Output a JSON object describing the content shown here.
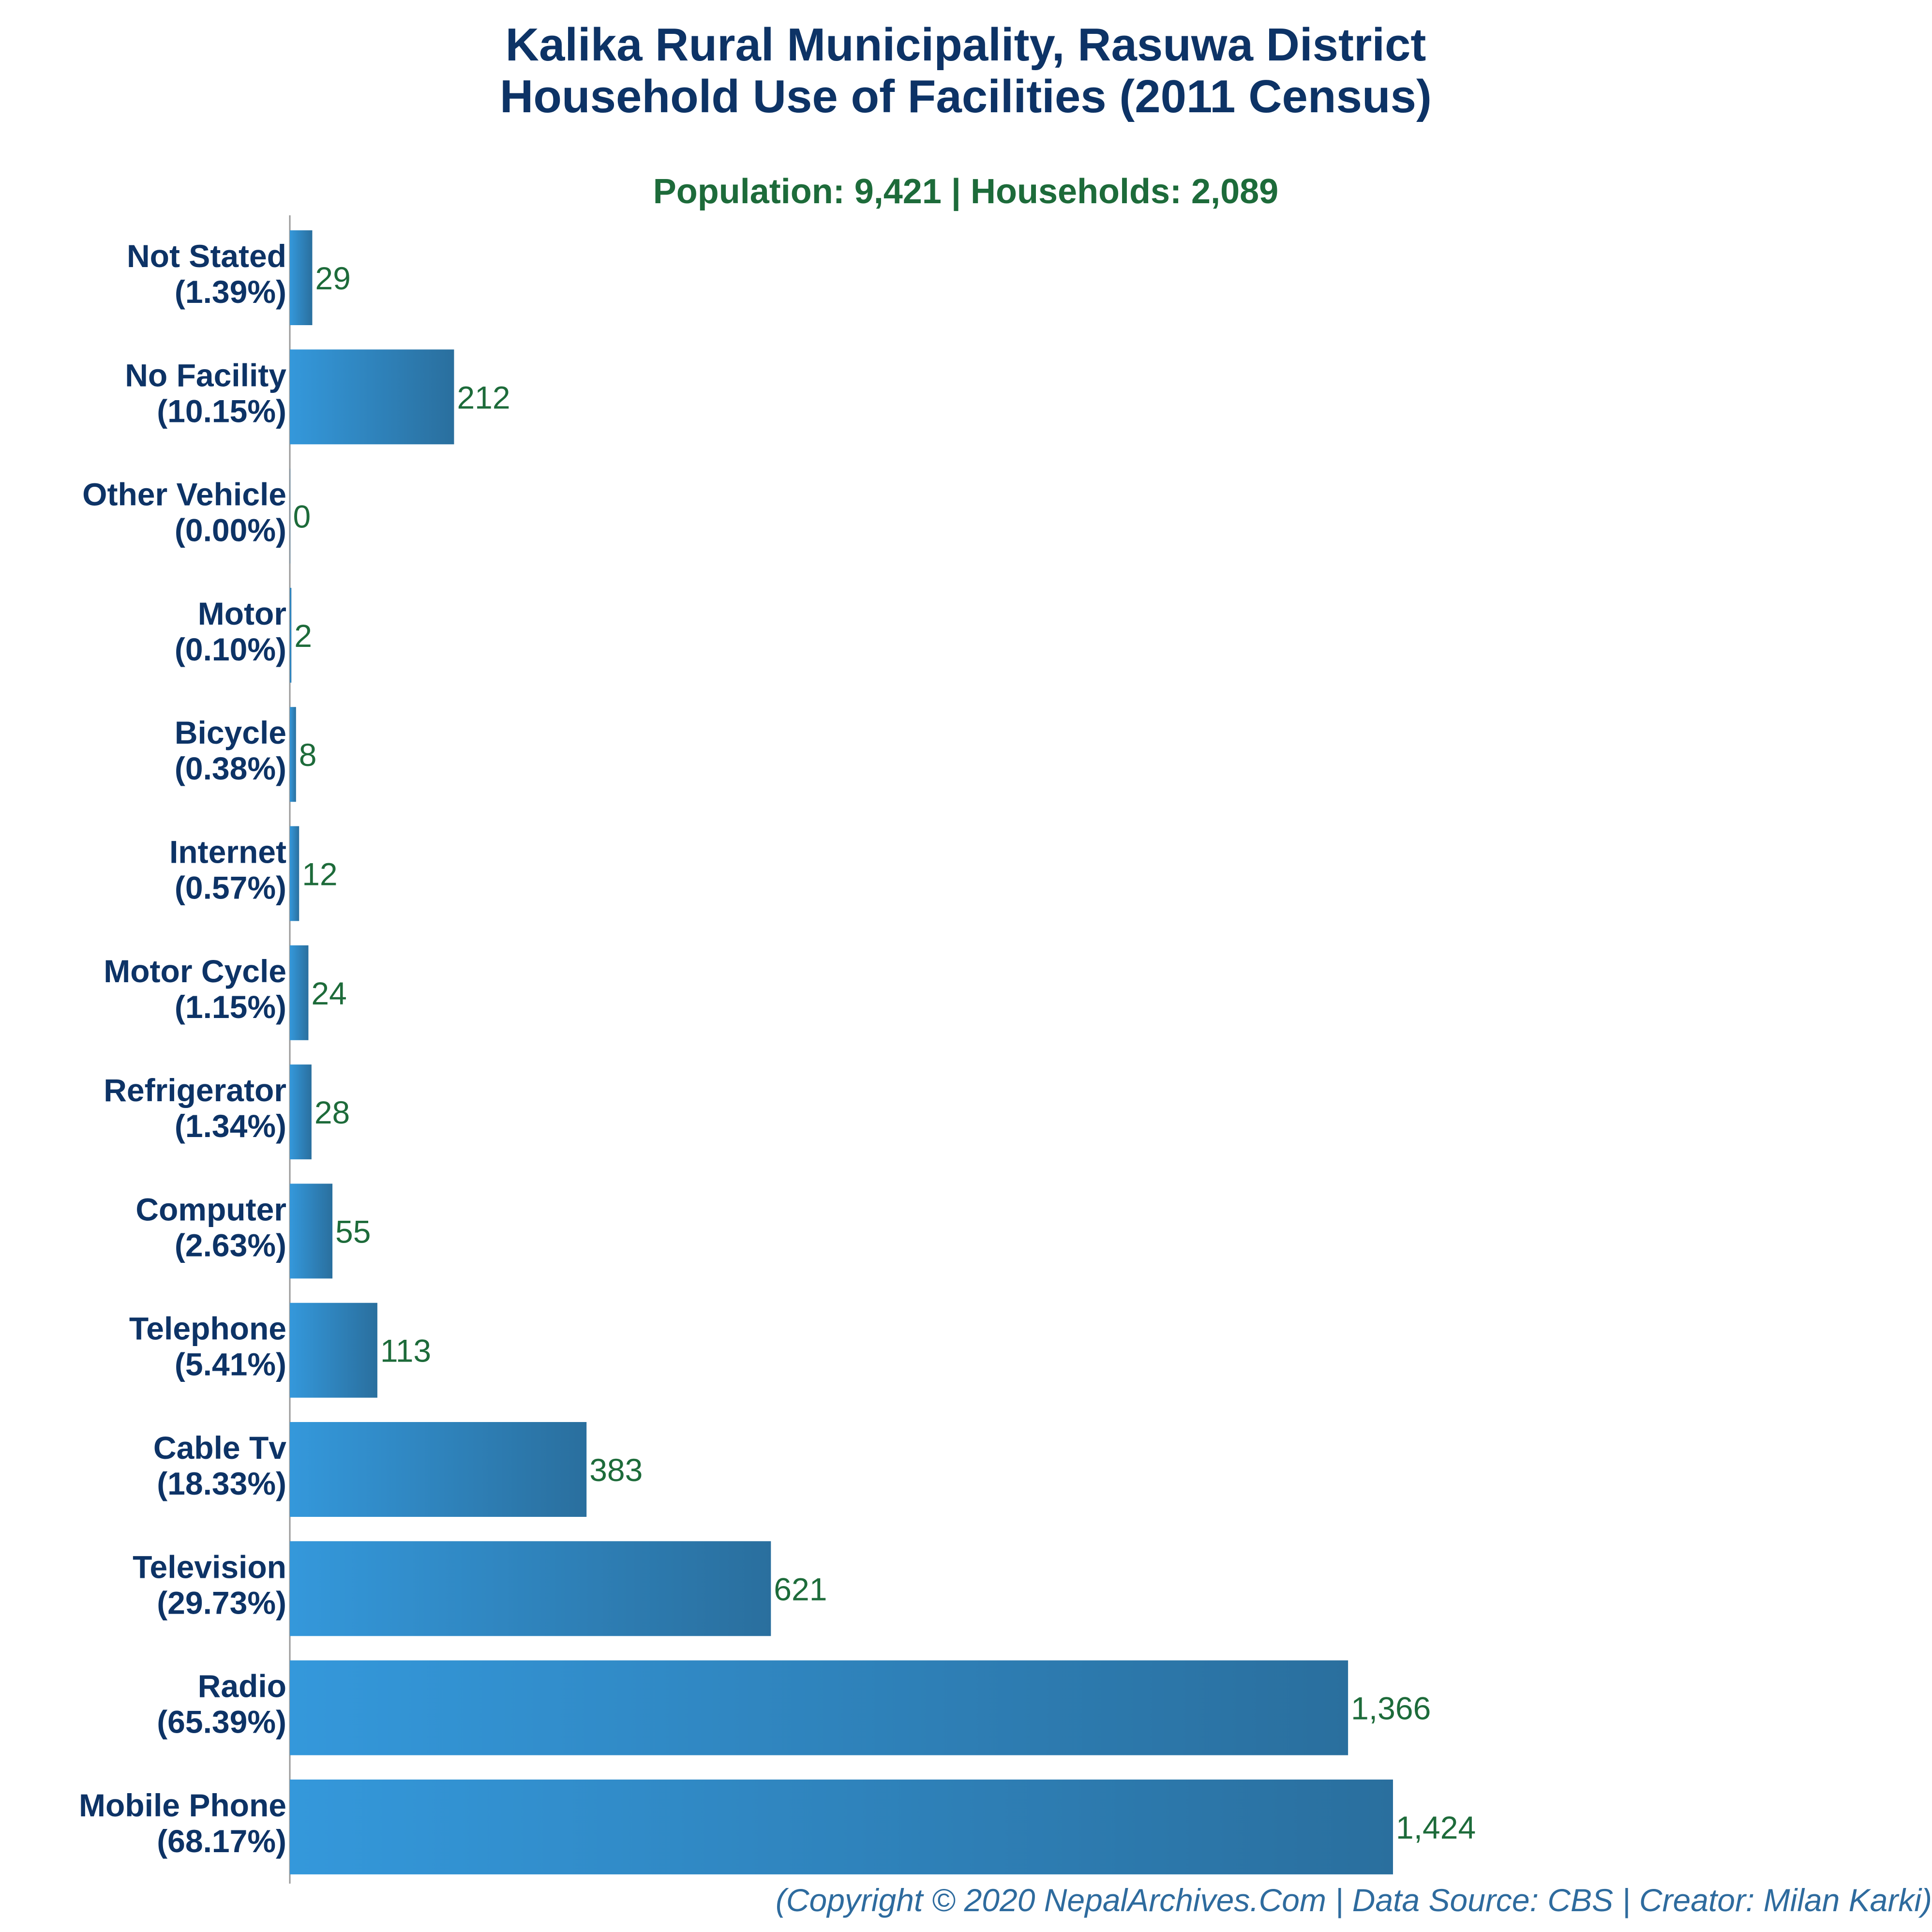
{
  "chart_data": {
    "type": "bar",
    "orientation": "horizontal",
    "title_lines": [
      "Kalika Rural Municipality, Rasuwa District",
      "Household Use of Facilities (2011 Census)"
    ],
    "subtitle": "Population: 9,421 | Households: 2,089",
    "categories": [
      "Not Stated",
      "No Facility",
      "Other Vehicle",
      "Motor",
      "Bicycle",
      "Internet",
      "Motor Cycle",
      "Refrigerator",
      "Computer",
      "Telephone",
      "Cable Tv",
      "Television",
      "Radio",
      "Mobile Phone"
    ],
    "percent_labels": [
      "(1.39%)",
      "(10.15%)",
      "(0.00%)",
      "(0.10%)",
      "(0.38%)",
      "(0.57%)",
      "(1.15%)",
      "(1.34%)",
      "(2.63%)",
      "(5.41%)",
      "(18.33%)",
      "(29.73%)",
      "(65.39%)",
      "(68.17%)"
    ],
    "values": [
      29,
      212,
      0,
      2,
      8,
      12,
      24,
      28,
      55,
      113,
      383,
      621,
      1366,
      1424
    ],
    "value_labels": [
      "29",
      "212",
      "0",
      "2",
      "8",
      "12",
      "24",
      "28",
      "55",
      "113",
      "383",
      "621",
      "1,366",
      "1,424"
    ],
    "xlim": [
      0,
      1500
    ],
    "grid": false,
    "legend": "none",
    "xlabel": "",
    "ylabel": "",
    "colors": {
      "bar_light": "#3498db",
      "bar_dark": "#2a6f9e",
      "title": "#0d3366",
      "subtitle": "#1d6b3a",
      "value_text": "#1d6b3a",
      "footer": "#2e6b9e",
      "axis": "#999999"
    }
  },
  "footer": "(Copyright © 2020 NepalArchives.Com | Data Source: CBS | Creator: Milan Karki)"
}
